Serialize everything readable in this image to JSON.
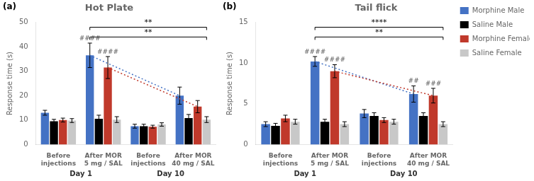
{
  "chart_data": [
    {
      "type": "bar",
      "title": "Hot Plate",
      "ylabel": "Response time (s)",
      "categories": [
        "Before\ninjections",
        "After MOR\n5 mg / SAL",
        "Before\ninjections",
        "After MOR\n40 mg / SAL"
      ],
      "series": [
        {
          "name": "Morphine Male",
          "color": "#4472C4",
          "values": [
            13.0,
            36.5,
            7.5,
            20.0
          ],
          "errors": [
            1.0,
            5.0,
            0.8,
            3.5
          ]
        },
        {
          "name": "Saline Male",
          "color": "#000000",
          "values": [
            9.5,
            10.5,
            7.5,
            10.8
          ],
          "errors": [
            0.8,
            1.5,
            0.8,
            1.5
          ]
        },
        {
          "name": "Morphine Female",
          "color": "#C0392B",
          "values": [
            10.0,
            31.5,
            7.3,
            15.5
          ],
          "errors": [
            0.8,
            4.5,
            0.6,
            2.5
          ]
        },
        {
          "name": "Saline Female",
          "color": "#C8C8C8",
          "values": [
            9.8,
            10.2,
            8.2,
            10.2
          ],
          "errors": [
            0.8,
            1.2,
            0.7,
            1.2
          ]
        }
      ],
      "ylim": [
        0,
        50
      ],
      "yticks": [
        0,
        10,
        20,
        30,
        40,
        50
      ],
      "grid": false,
      "annotations": [
        {
          "text": "(a)"
        },
        {
          "text": "Day 1",
          "categories": [
            0,
            1
          ]
        },
        {
          "text": "Day 10",
          "categories": [
            2,
            3
          ]
        },
        {
          "series": 0,
          "categories": [
            1,
            3
          ],
          "line_style": "dotted"
        },
        {
          "series": 2,
          "categories": [
            1,
            3
          ],
          "line_style": "dotted"
        },
        {
          "text": "####",
          "series": 0,
          "category": 1
        },
        {
          "text": "####",
          "series": 2,
          "category": 1
        },
        {
          "text": "**",
          "y": 48,
          "from": {
            "series": 0,
            "category": 1
          },
          "to": {
            "series": 3,
            "category": 3
          }
        },
        {
          "text": "**",
          "y": 44,
          "from": {
            "series": 0,
            "category": 1
          },
          "to": {
            "series": 3,
            "category": 3
          }
        }
      ]
    },
    {
      "type": "bar",
      "title": "Tail flick",
      "ylabel": "Response time (s)",
      "categories": [
        "Before\ninjections",
        "After MOR\n5 mg / SAL",
        "Before\ninjections",
        "After MOR\n40 mg / SAL"
      ],
      "series": [
        {
          "name": "Morphine Male",
          "color": "#4472C4",
          "values": [
            2.5,
            10.2,
            3.8,
            6.2
          ],
          "errors": [
            0.3,
            0.6,
            0.5,
            1.0
          ]
        },
        {
          "name": "Saline Male",
          "color": "#000000",
          "values": [
            2.3,
            2.8,
            3.5,
            3.5
          ],
          "errors": [
            0.3,
            0.3,
            0.4,
            0.4
          ]
        },
        {
          "name": "Morphine Female",
          "color": "#C0392B",
          "values": [
            3.2,
            9.0,
            3.0,
            6.0
          ],
          "errors": [
            0.4,
            0.8,
            0.3,
            0.9
          ]
        },
        {
          "name": "Saline Female",
          "color": "#C8C8C8",
          "values": [
            2.8,
            2.5,
            2.8,
            2.5
          ],
          "errors": [
            0.3,
            0.3,
            0.3,
            0.3
          ]
        }
      ],
      "ylim": [
        0,
        15
      ],
      "yticks": [
        0,
        5,
        10,
        15
      ],
      "grid": false,
      "legend": "right",
      "annotations": [
        {
          "text": "(b)"
        },
        {
          "text": "Day 1",
          "categories": [
            0,
            1
          ]
        },
        {
          "text": "Day 10",
          "categories": [
            2,
            3
          ]
        },
        {
          "series": 0,
          "categories": [
            1,
            3
          ],
          "line_style": "dotted"
        },
        {
          "series": 2,
          "categories": [
            1,
            3
          ],
          "line_style": "dotted"
        },
        {
          "text": "####",
          "series": 0,
          "category": 1
        },
        {
          "text": "####",
          "series": 2,
          "category": 1
        },
        {
          "text": "##",
          "series": 0,
          "category": 3
        },
        {
          "text": "###",
          "series": 2,
          "category": 3
        },
        {
          "text": "****",
          "y": 14.4,
          "from": {
            "series": 0,
            "category": 1
          },
          "to": {
            "series": 3,
            "category": 3
          }
        },
        {
          "text": "**",
          "y": 13.2,
          "from": {
            "series": 0,
            "category": 1
          },
          "to": {
            "series": 3,
            "category": 3
          }
        }
      ]
    }
  ]
}
